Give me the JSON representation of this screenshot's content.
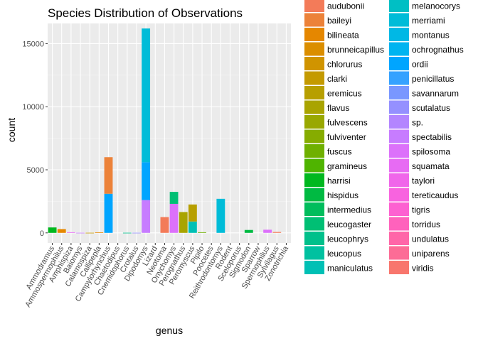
{
  "chart_data": {
    "type": "bar",
    "stacked": true,
    "title": "Species Distribution of Observations",
    "xlabel": "genus",
    "ylabel": "count",
    "ylim": [
      -800,
      16600
    ],
    "yticks": [
      0,
      5000,
      10000,
      15000
    ],
    "grid": true,
    "legend_position": "right",
    "categories": [
      "Ammodramus",
      "Ammospermophilus",
      "Amphispiza",
      "Baiomys",
      "Calamospiza",
      "Callipepla",
      "Campylorhynchus",
      "Chaetodipus",
      "Cnemidophorus",
      "Crotalus",
      "Dipodomys",
      "Lizard",
      "Neotoma",
      "Onychomys",
      "Perognathus",
      "Peromyscus",
      "Pipilo",
      "Poocetes",
      "Reithrodontomys",
      "Rodent",
      "Sceloporus",
      "Sigmodon",
      "Sparrow",
      "Spermophilus",
      "Sylvilagus",
      "Zonotrichia"
    ],
    "species": [
      {
        "name": "audubonii",
        "color": "#F37B59"
      },
      {
        "name": "baileyi",
        "color": "#EC8239"
      },
      {
        "name": "bilineata",
        "color": "#E58700"
      },
      {
        "name": "brunneicapillus",
        "color": "#DB8E00"
      },
      {
        "name": "chlorurus",
        "color": "#D09400"
      },
      {
        "name": "clarki",
        "color": "#C49A00"
      },
      {
        "name": "eremicus",
        "color": "#B79F00"
      },
      {
        "name": "flavus",
        "color": "#A9A400"
      },
      {
        "name": "fulvescens",
        "color": "#99A800"
      },
      {
        "name": "fulviventer",
        "color": "#86AC00"
      },
      {
        "name": "fuscus",
        "color": "#6FB000"
      },
      {
        "name": "gramineus",
        "color": "#4FB400"
      },
      {
        "name": "harrisi",
        "color": "#00B81F"
      },
      {
        "name": "hispidus",
        "color": "#00BA42"
      },
      {
        "name": "intermedius",
        "color": "#00BD5C"
      },
      {
        "name": "leucogaster",
        "color": "#00BF74"
      },
      {
        "name": "leucophrys",
        "color": "#00C08B"
      },
      {
        "name": "leucopus",
        "color": "#00C1A0"
      },
      {
        "name": "maniculatus",
        "color": "#00C0B5"
      },
      {
        "name": "melanocorys",
        "color": "#00BFC4"
      },
      {
        "name": "merriami",
        "color": "#00BCD8"
      },
      {
        "name": "montanus",
        "color": "#00B8E5"
      },
      {
        "name": "ochrognathus",
        "color": "#00B4F0"
      },
      {
        "name": "ordii",
        "color": "#00A5FF"
      },
      {
        "name": "penicillatus",
        "color": "#35A2FF"
      },
      {
        "name": "savannarum",
        "color": "#7997FF"
      },
      {
        "name": "scutalatus",
        "color": "#9590FF"
      },
      {
        "name": "sp.",
        "color": "#B385FF"
      },
      {
        "name": "spectabilis",
        "color": "#C77CFF"
      },
      {
        "name": "spilosoma",
        "color": "#DC71FA"
      },
      {
        "name": "squamata",
        "color": "#E76BF3"
      },
      {
        "name": "taylori",
        "color": "#F066EA"
      },
      {
        "name": "tereticaudus",
        "color": "#F863DF"
      },
      {
        "name": "tigris",
        "color": "#FD61D1"
      },
      {
        "name": "torridus",
        "color": "#FF62BC"
      },
      {
        "name": "undulatus",
        "color": "#FF66A8"
      },
      {
        "name": "uniparens",
        "color": "#FC6C96"
      },
      {
        "name": "viridis",
        "color": "#F8766D"
      }
    ],
    "stacks": [
      [
        {
          "species": "harrisi",
          "value": 430
        }
      ],
      [
        {
          "species": "bilineata",
          "value": 300
        }
      ],
      [
        {
          "species": "squamata",
          "value": 50
        }
      ],
      [
        {
          "species": "spectabilis",
          "value": 10
        }
      ],
      [
        {
          "species": "clarki",
          "value": 10
        }
      ],
      [
        {
          "species": "bilineata",
          "value": 40
        }
      ],
      [
        {
          "species": "ordii",
          "value": 3100
        },
        {
          "species": "baileyi",
          "value": 2900
        }
      ],
      [],
      [
        {
          "species": "leucophrys",
          "value": 10
        }
      ],
      [
        {
          "species": "scutalatus",
          "value": 10
        }
      ],
      [
        {
          "species": "spectabilis",
          "value": 2600
        },
        {
          "species": "ordii",
          "value": 3000
        },
        {
          "species": "merriami",
          "value": 10600
        }
      ],
      [],
      [
        {
          "species": "audubonii",
          "value": 1250
        }
      ],
      [
        {
          "species": "spilosoma",
          "value": 2300
        },
        {
          "species": "leucogaster",
          "value": 950
        }
      ],
      [
        {
          "species": "flavus",
          "value": 1650
        }
      ],
      [
        {
          "species": "maniculatus",
          "value": 900
        },
        {
          "species": "eremicus",
          "value": 1350
        }
      ],
      [
        {
          "species": "fuscus",
          "value": 50
        }
      ],
      [],
      [
        {
          "species": "merriami",
          "value": 2700
        }
      ],
      [],
      [],
      [
        {
          "species": "hispidus",
          "value": 230
        }
      ],
      [],
      [
        {
          "species": "spilosoma",
          "value": 250
        }
      ],
      [
        {
          "species": "audubonii",
          "value": 70
        }
      ],
      []
    ]
  }
}
